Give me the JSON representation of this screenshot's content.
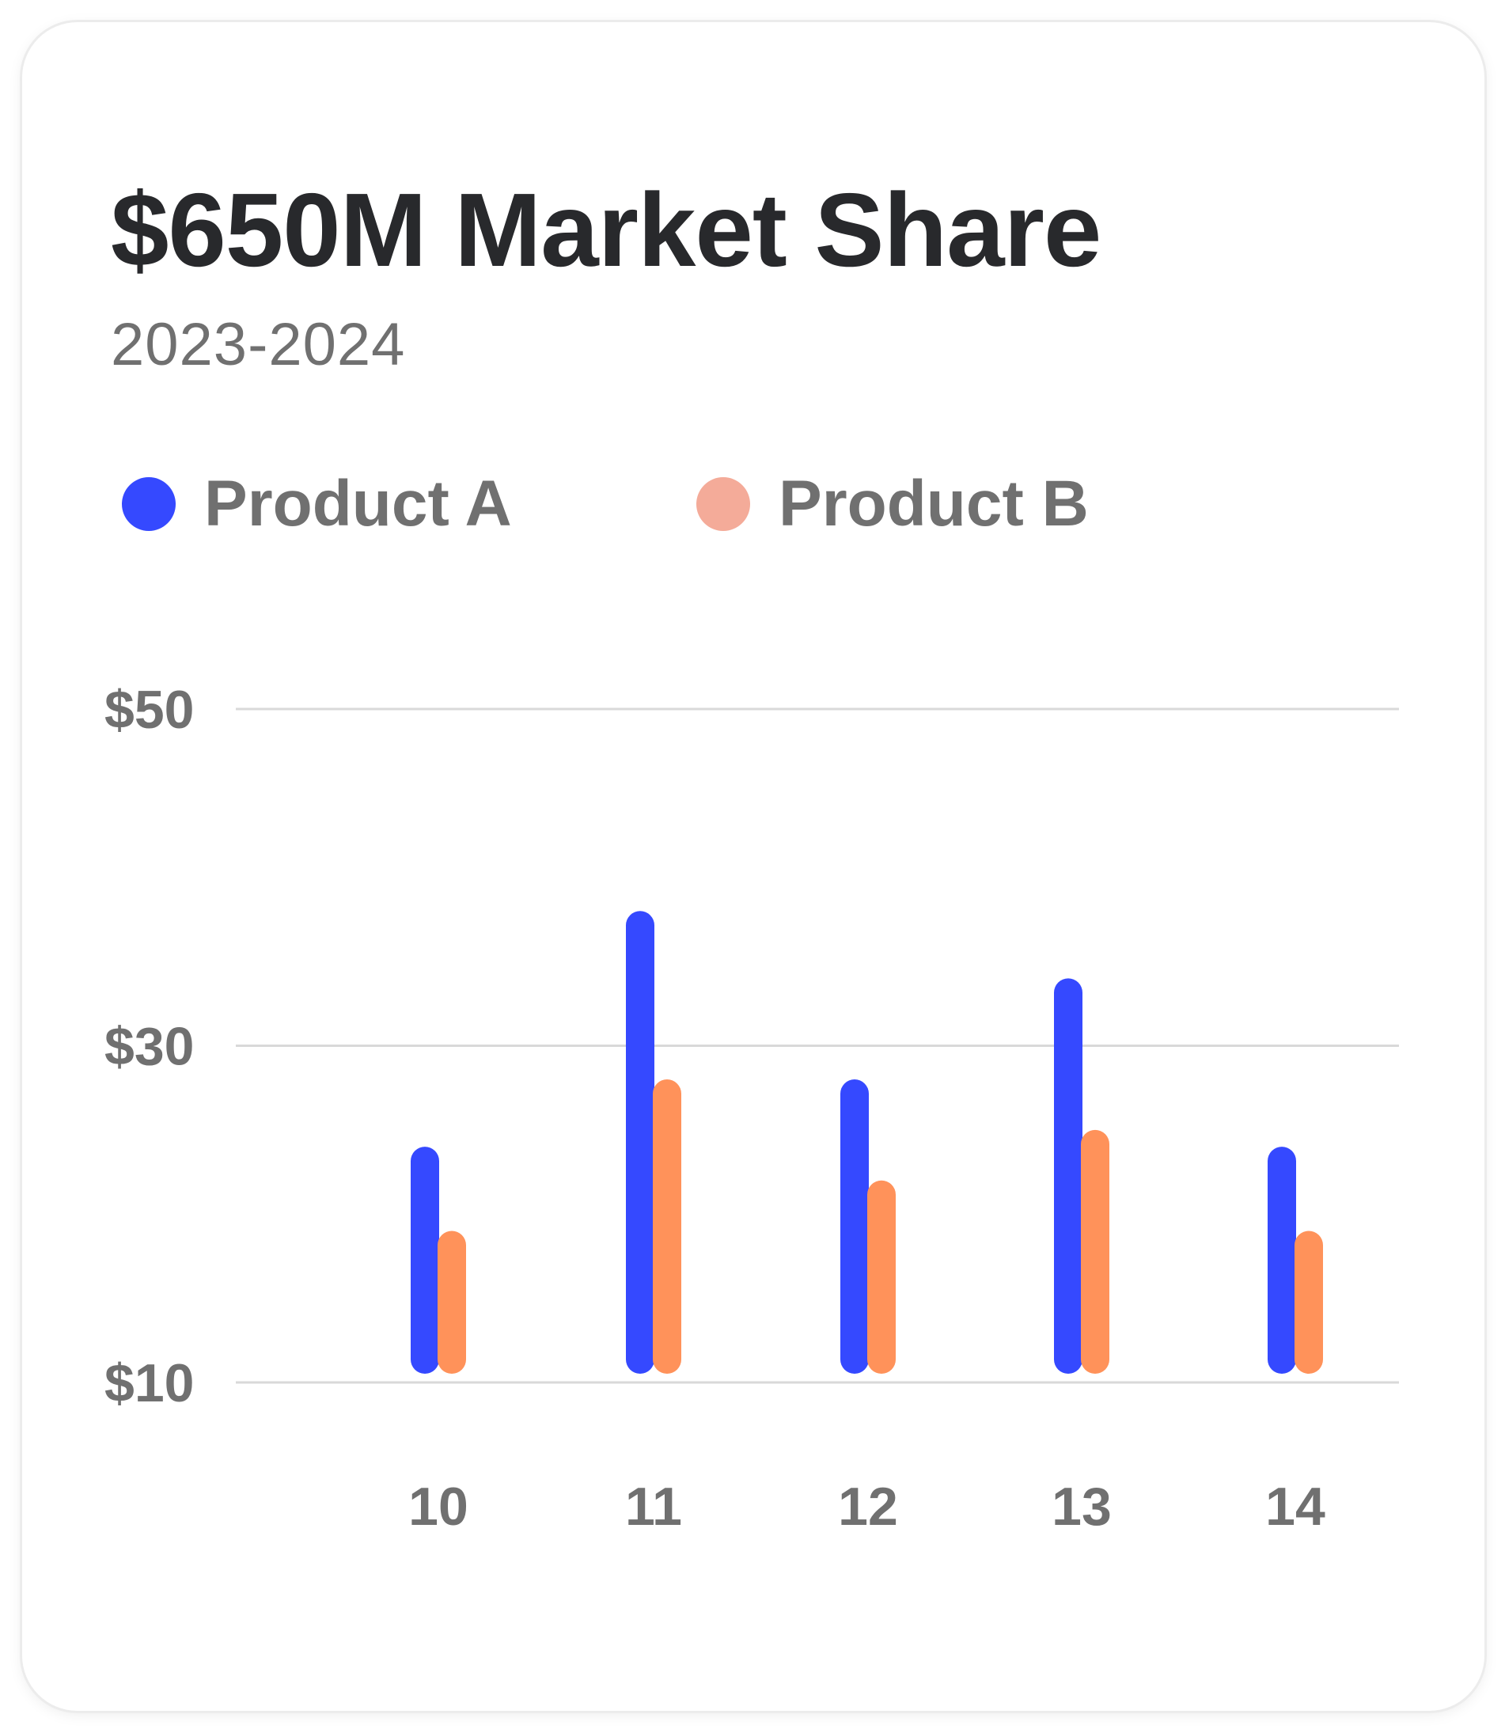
{
  "header": {
    "title": "$650M Market Share",
    "subtitle": "2023-2024"
  },
  "colors": {
    "product_a": "#3549ff",
    "product_a_legend": "#3549ff",
    "product_b": "#ff925a",
    "product_b_legend": "#f4ab99",
    "grid": "#d9d9d9",
    "label": "#707070"
  },
  "chart_data": {
    "type": "bar",
    "title": "$650M Market Share",
    "subtitle": "2023-2024",
    "xlabel": "",
    "ylabel": "",
    "categories": [
      "10",
      "11",
      "12",
      "13",
      "14"
    ],
    "series": [
      {
        "name": "Product A",
        "values": [
          24,
          38,
          28,
          34,
          24
        ]
      },
      {
        "name": "Product B",
        "values": [
          19,
          28,
          22,
          25,
          19
        ]
      }
    ],
    "ylim": [
      10,
      50
    ],
    "yticks": [
      {
        "value": 10,
        "label": "$10"
      },
      {
        "value": 30,
        "label": "$30"
      },
      {
        "value": 50,
        "label": "$50"
      }
    ],
    "grid": true,
    "legend_position": "top-left"
  }
}
